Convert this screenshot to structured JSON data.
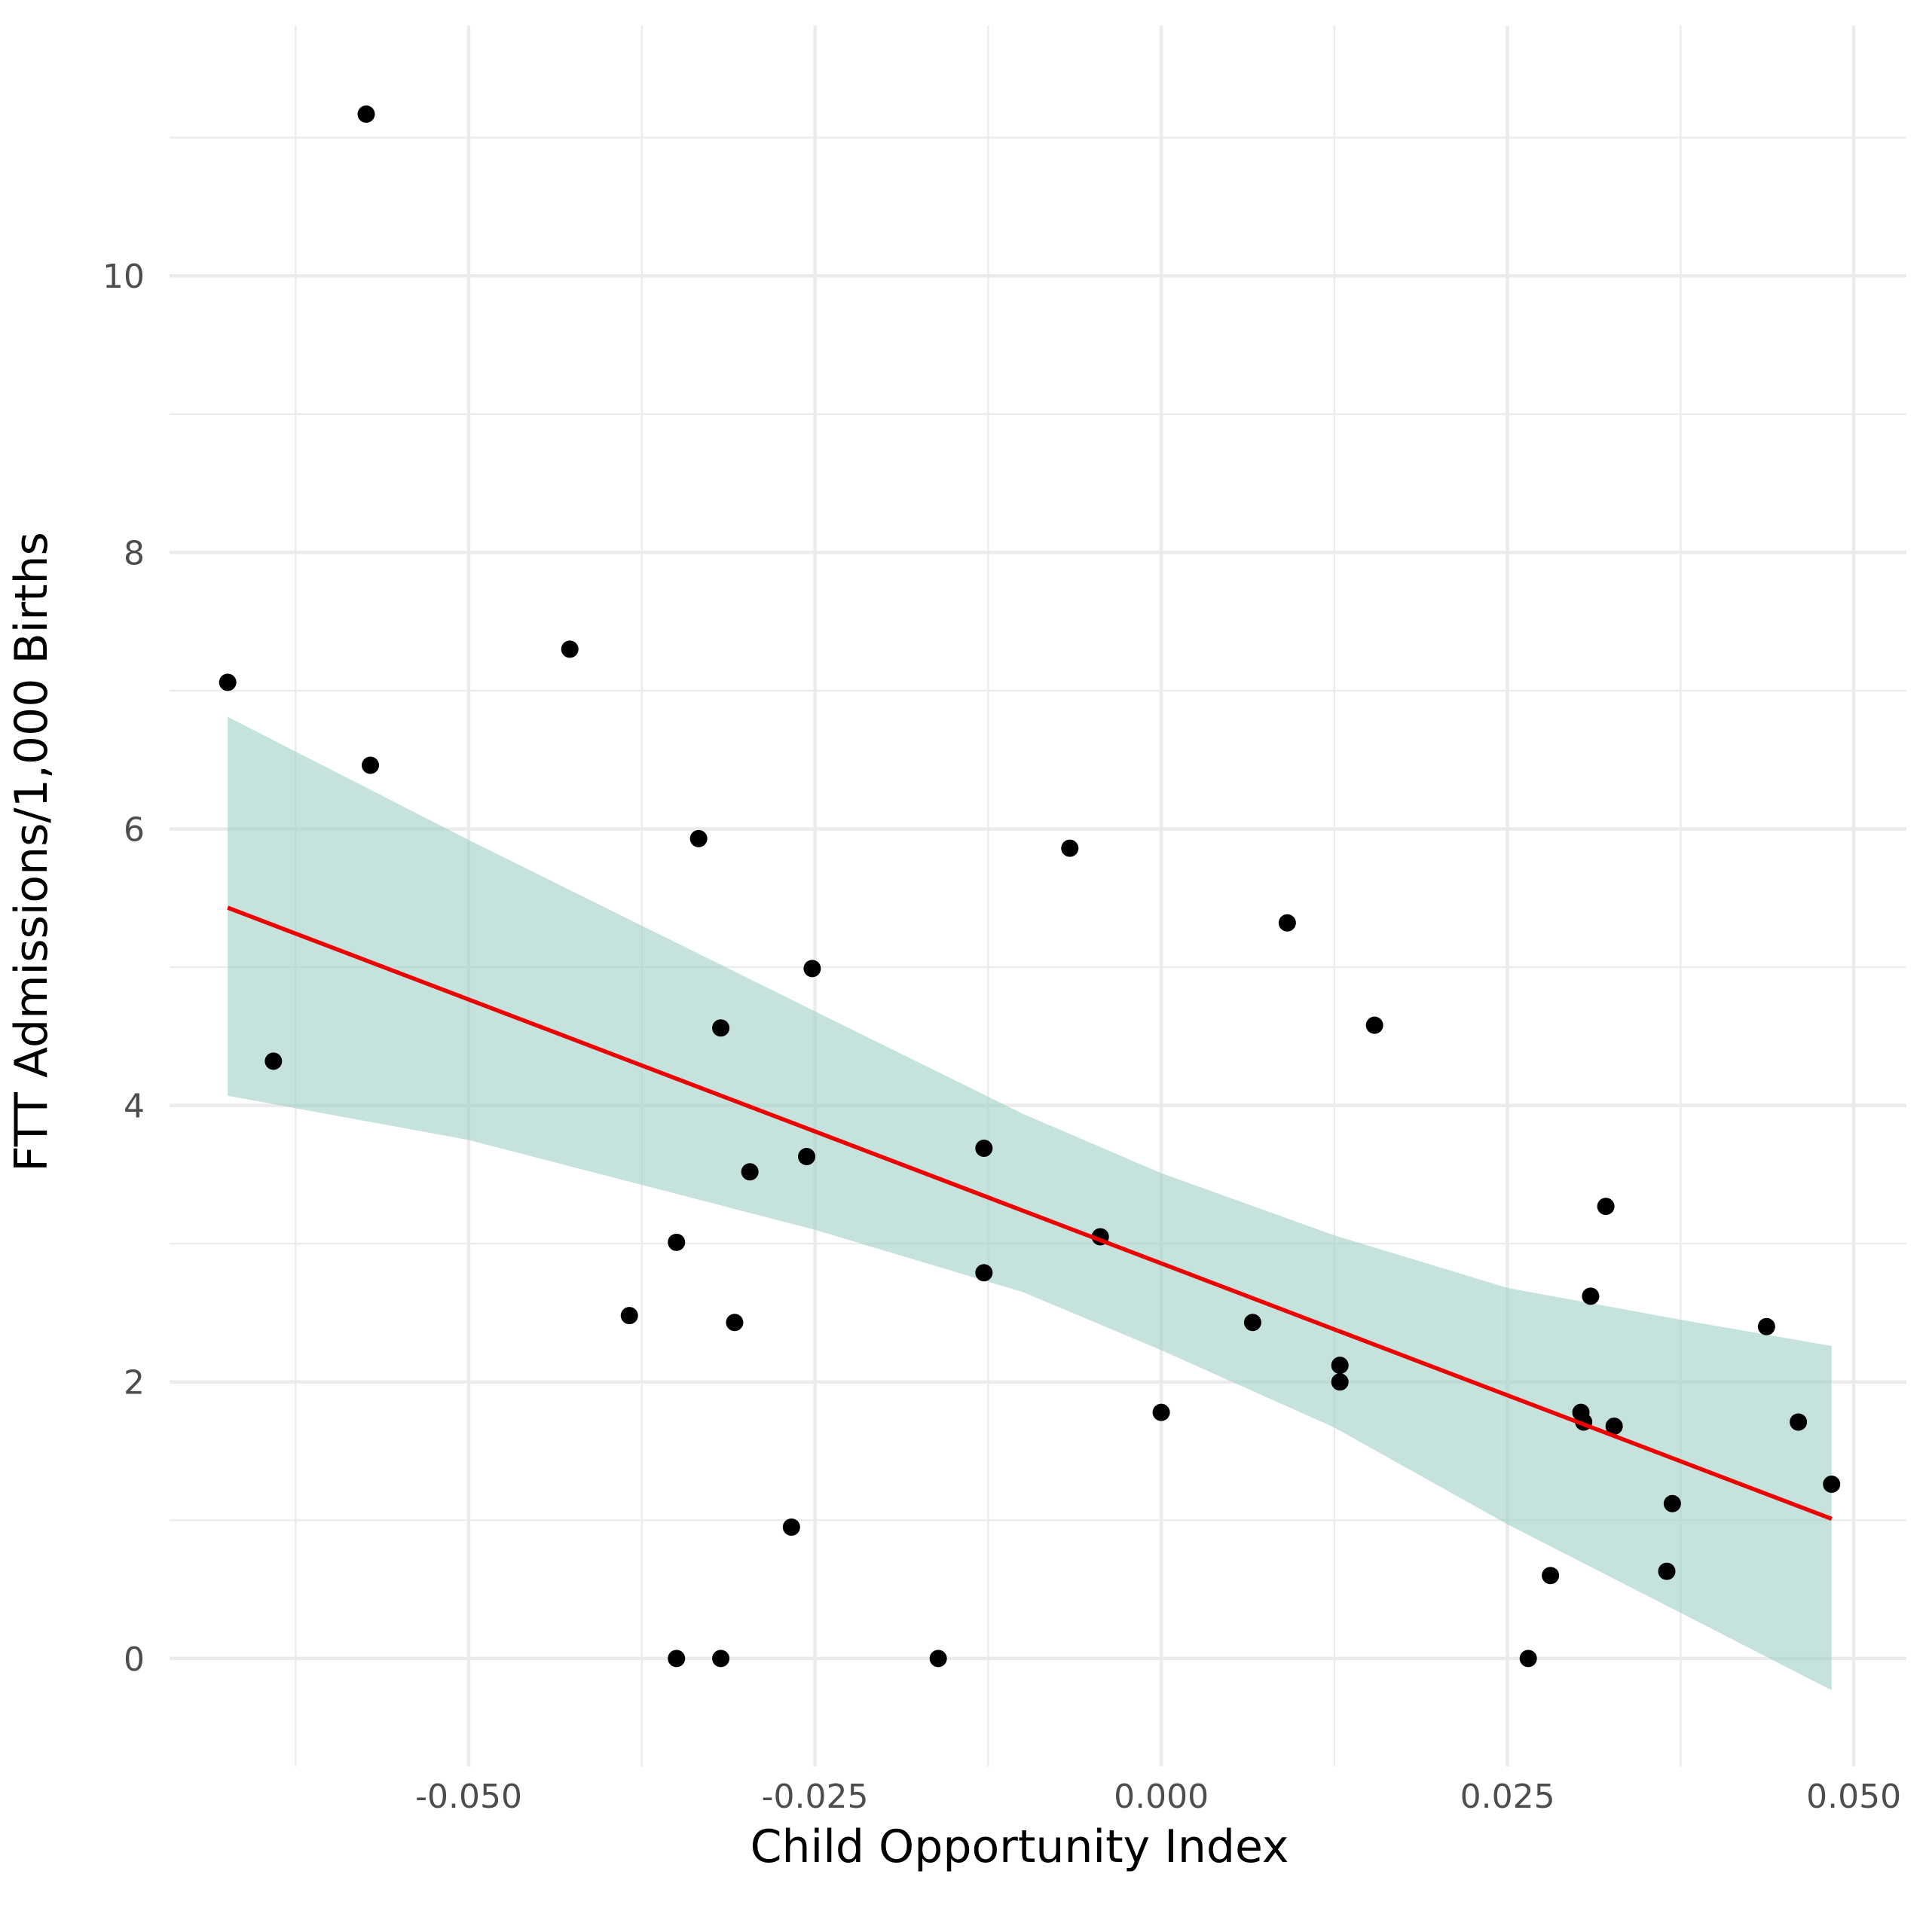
{
  "chart_data": {
    "type": "scatter",
    "title": "",
    "xlabel": "Child Opportunity Index",
    "ylabel": "FTT Admissions/1,000 Births",
    "xlim": [
      -0.0716,
      0.0538
    ],
    "ylim": [
      -0.78,
      11.81
    ],
    "grid": true,
    "legend": "none",
    "x_ticks": [
      -0.05,
      -0.025,
      0.0,
      0.025,
      0.05
    ],
    "x_tick_labels": [
      "-0.050",
      "-0.025",
      "0.000",
      "0.025",
      "0.050"
    ],
    "x_minor_ticks": [
      -0.0625,
      -0.0375,
      -0.0125,
      0.0125,
      0.0375
    ],
    "y_ticks": [
      0,
      2,
      4,
      6,
      8,
      10
    ],
    "y_tick_labels": [
      "0",
      "2",
      "4",
      "6",
      "8",
      "10"
    ],
    "y_minor_ticks": [
      1,
      3,
      5,
      7,
      9,
      11
    ],
    "colors": {
      "points": "#000000",
      "fit_line": "#ee0000",
      "ci_band": "#9fcec4"
    },
    "points": [
      {
        "x": -0.0674,
        "y": 7.06
      },
      {
        "x": -0.0641,
        "y": 4.32
      },
      {
        "x": -0.0574,
        "y": 11.17
      },
      {
        "x": -0.0571,
        "y": 6.46
      },
      {
        "x": -0.0427,
        "y": 7.3
      },
      {
        "x": -0.0384,
        "y": 2.48
      },
      {
        "x": -0.035,
        "y": 3.01
      },
      {
        "x": -0.035,
        "y": 0.0
      },
      {
        "x": -0.0334,
        "y": 5.93
      },
      {
        "x": -0.0318,
        "y": 4.56
      },
      {
        "x": -0.0318,
        "y": 0.0
      },
      {
        "x": -0.0308,
        "y": 2.43
      },
      {
        "x": -0.0297,
        "y": 3.52
      },
      {
        "x": -0.0267,
        "y": 0.95
      },
      {
        "x": -0.0256,
        "y": 3.63
      },
      {
        "x": -0.0252,
        "y": 4.99
      },
      {
        "x": -0.0161,
        "y": 0.0
      },
      {
        "x": -0.0128,
        "y": 3.69
      },
      {
        "x": -0.0128,
        "y": 2.79
      },
      {
        "x": -0.0066,
        "y": 5.86
      },
      {
        "x": -0.0044,
        "y": 3.05
      },
      {
        "x": 0.0,
        "y": 1.78
      },
      {
        "x": 0.0066,
        "y": 2.43
      },
      {
        "x": 0.0091,
        "y": 5.32
      },
      {
        "x": 0.0129,
        "y": 2.12
      },
      {
        "x": 0.0129,
        "y": 2.0
      },
      {
        "x": 0.0154,
        "y": 4.58
      },
      {
        "x": 0.0265,
        "y": 0.0
      },
      {
        "x": 0.0281,
        "y": 0.6
      },
      {
        "x": 0.0303,
        "y": 1.78
      },
      {
        "x": 0.0305,
        "y": 1.71
      },
      {
        "x": 0.031,
        "y": 2.62
      },
      {
        "x": 0.0321,
        "y": 3.27
      },
      {
        "x": 0.0327,
        "y": 1.68
      },
      {
        "x": 0.0365,
        "y": 0.63
      },
      {
        "x": 0.0369,
        "y": 1.12
      },
      {
        "x": 0.0437,
        "y": 2.4
      },
      {
        "x": 0.046,
        "y": 1.71
      },
      {
        "x": 0.0484,
        "y": 1.26
      }
    ],
    "fit_line": {
      "x": [
        -0.0674,
        0.0484
      ],
      "y": [
        5.43,
        1.01
      ]
    },
    "ci_band": {
      "x": [
        -0.0674,
        -0.05,
        -0.025,
        -0.01,
        0.0,
        0.0125,
        0.025,
        0.0375,
        0.0484
      ],
      "lower": [
        4.07,
        3.75,
        3.1,
        2.65,
        2.23,
        1.67,
        0.97,
        0.33,
        -0.23
      ],
      "upper": [
        6.81,
        5.92,
        4.68,
        3.94,
        3.51,
        3.06,
        2.68,
        2.45,
        2.26
      ]
    }
  }
}
